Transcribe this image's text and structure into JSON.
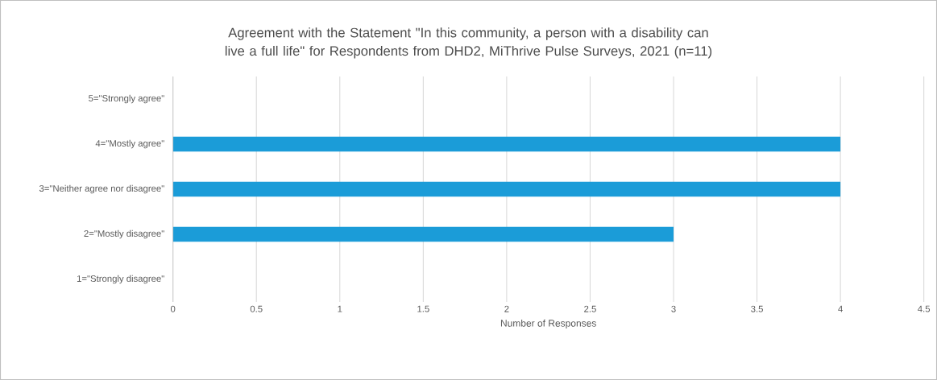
{
  "chart_data": {
    "type": "bar",
    "orientation": "horizontal",
    "title": "Agreement with the Statement \"In this community, a person with a disability can live a full life\" for Respondents from DHD2, MiThrive Pulse Surveys, 2021 (n=11)",
    "xlabel": "Number of Responses",
    "categories": [
      "5=\"Strongly agree\"",
      "4=\"Mostly agree\"",
      "3=\"Neither agree nor disagree\"",
      "2=\"Mostly disagree\"",
      "1=\"Strongly disagree\""
    ],
    "values": [
      0,
      4,
      4,
      3,
      0
    ],
    "color": "#1b9cd8",
    "xlim": [
      0,
      4.5
    ],
    "xticks": [
      0,
      0.5,
      1,
      1.5,
      2,
      2.5,
      3,
      3.5,
      4,
      4.5
    ],
    "grid": "x",
    "legend": false
  }
}
